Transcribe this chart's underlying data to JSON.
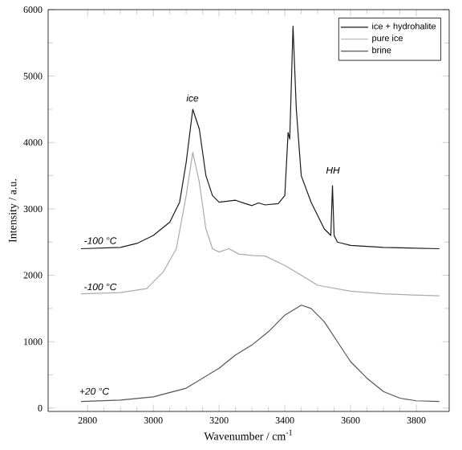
{
  "chart_data": {
    "type": "line",
    "xlabel": "Wavenumber  /  cm$^{-1}$",
    "ylabel": "Intensity  /  a.u.",
    "xlim": [
      2680,
      3900
    ],
    "ylim": [
      -50,
      6000
    ],
    "xticks": [
      2800,
      3000,
      3200,
      3400,
      3600,
      3800
    ],
    "yticks": [
      0,
      1000,
      2000,
      3000,
      4000,
      5000,
      6000
    ],
    "legend": "top right",
    "grid": false,
    "marker": "none",
    "line_style": "solid",
    "series": [
      {
        "name": "ice + hydrohalite",
        "color": "#1a1a1a",
        "x": [
          2780,
          2900,
          2950,
          3000,
          3050,
          3080,
          3100,
          3120,
          3140,
          3160,
          3180,
          3200,
          3250,
          3280,
          3300,
          3320,
          3340,
          3380,
          3400,
          3410,
          3415,
          3425,
          3435,
          3450,
          3480,
          3500,
          3520,
          3540,
          3545,
          3550,
          3560,
          3600,
          3700,
          3870
        ],
        "values": [
          2400,
          2420,
          2480,
          2600,
          2800,
          3100,
          3700,
          4500,
          4200,
          3500,
          3200,
          3100,
          3130,
          3080,
          3050,
          3090,
          3060,
          3080,
          3200,
          4150,
          4050,
          5750,
          4500,
          3500,
          3100,
          2900,
          2700,
          2600,
          3350,
          2600,
          2500,
          2450,
          2420,
          2400
        ]
      },
      {
        "name": "pure ice",
        "color": "#aaaaaa",
        "x": [
          2780,
          2900,
          2980,
          3030,
          3070,
          3100,
          3120,
          3140,
          3160,
          3180,
          3200,
          3230,
          3260,
          3300,
          3340,
          3400,
          3450,
          3500,
          3600,
          3700,
          3870
        ],
        "values": [
          1720,
          1740,
          1800,
          2050,
          2400,
          3200,
          3850,
          3400,
          2700,
          2400,
          2350,
          2400,
          2320,
          2300,
          2290,
          2150,
          2000,
          1850,
          1760,
          1720,
          1690
        ]
      },
      {
        "name": "brine",
        "color": "#555555",
        "x": [
          2780,
          2900,
          3000,
          3100,
          3200,
          3250,
          3300,
          3350,
          3400,
          3450,
          3480,
          3520,
          3560,
          3600,
          3650,
          3700,
          3750,
          3800,
          3870
        ],
        "values": [
          100,
          120,
          170,
          300,
          600,
          800,
          950,
          1150,
          1400,
          1550,
          1500,
          1300,
          1000,
          700,
          450,
          250,
          150,
          110,
          100
        ]
      }
    ],
    "annotations": [
      "ice",
      "HH",
      "-100 °C",
      "-100 °C",
      "+20 °C"
    ]
  }
}
